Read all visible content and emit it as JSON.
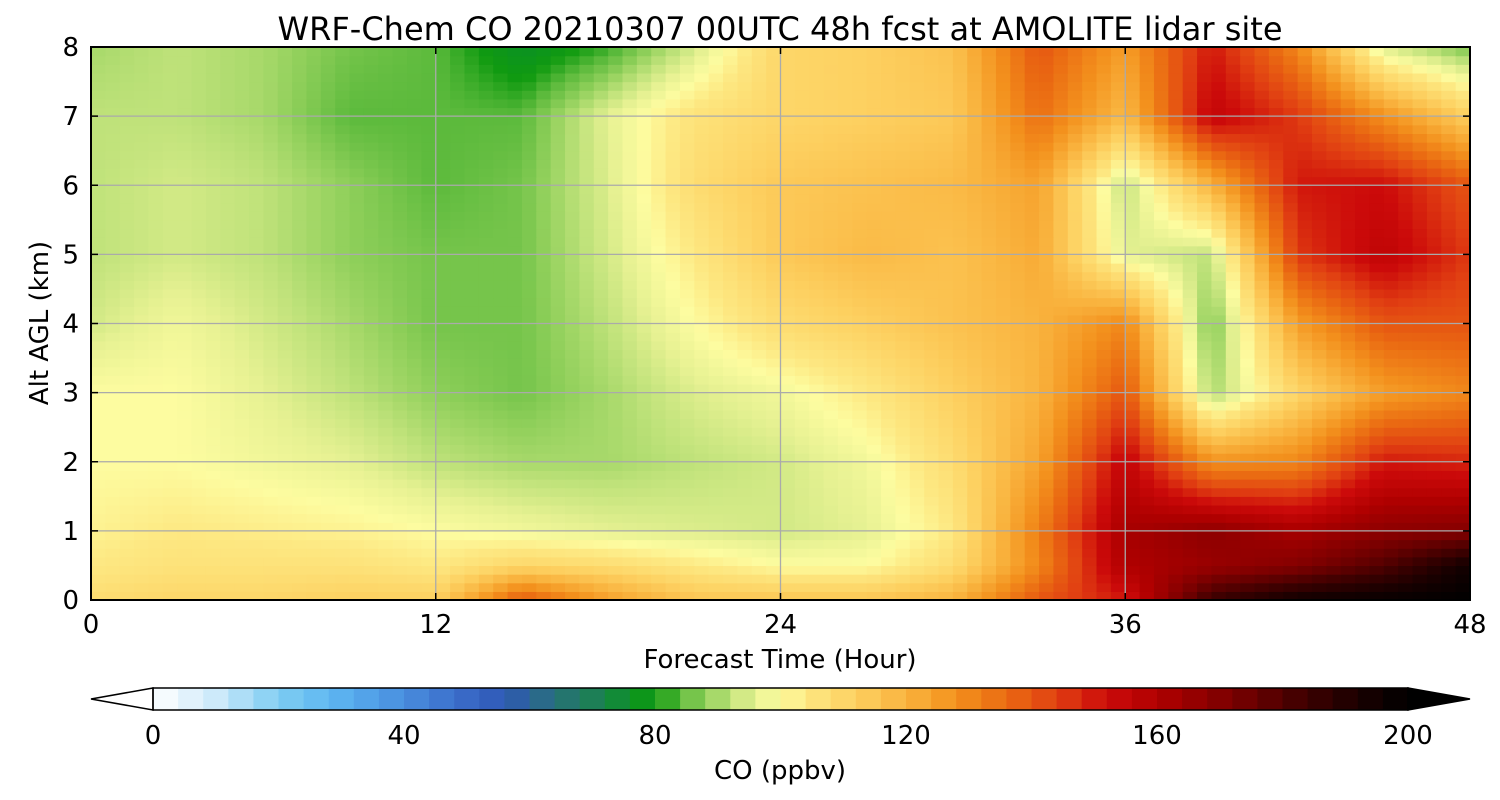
{
  "chart_data": {
    "type": "heatmap",
    "title": "WRF-Chem CO  20210307 00UTC 48h fcst at AMOLITE lidar site",
    "xlabel": "Forecast Time (Hour)",
    "ylabel": "Alt AGL (km)",
    "xlim": [
      0,
      48
    ],
    "ylim": [
      0,
      8
    ],
    "x_ticks": [
      "0",
      "12",
      "24",
      "36",
      "48"
    ],
    "y_ticks": [
      "0",
      "1",
      "2",
      "3",
      "4",
      "5",
      "6",
      "7",
      "8"
    ],
    "grid": true,
    "x": [
      0,
      3,
      6,
      9,
      12,
      15,
      18,
      21,
      24,
      27,
      30,
      33,
      36,
      39,
      42,
      45,
      48
    ],
    "y": [
      0,
      0.5,
      1,
      2,
      3,
      4,
      5,
      6,
      7,
      8
    ],
    "z": [
      [
        108,
        110,
        110,
        112,
        112,
        140,
        125,
        115,
        115,
        115,
        120,
        140,
        150,
        185,
        195,
        198,
        200
      ],
      [
        104,
        106,
        106,
        106,
        104,
        110,
        108,
        104,
        100,
        100,
        108,
        130,
        160,
        165,
        170,
        180,
        195
      ],
      [
        102,
        104,
        103,
        102,
        100,
        98,
        96,
        95,
        94,
        96,
        104,
        132,
        162,
        168,
        162,
        168,
        170
      ],
      [
        100,
        100,
        98,
        96,
        92,
        90,
        90,
        92,
        94,
        98,
        108,
        124,
        155,
        128,
        130,
        150,
        148
      ],
      [
        100,
        100,
        96,
        92,
        88,
        86,
        90,
        95,
        98,
        104,
        112,
        120,
        140,
        90,
        110,
        125,
        130
      ],
      [
        94,
        98,
        94,
        90,
        86,
        86,
        92,
        100,
        108,
        112,
        116,
        120,
        130,
        86,
        125,
        140,
        140
      ],
      [
        92,
        94,
        92,
        88,
        86,
        86,
        94,
        104,
        114,
        118,
        116,
        122,
        96,
        92,
        145,
        156,
        145
      ],
      [
        92,
        94,
        92,
        88,
        84,
        86,
        95,
        108,
        114,
        116,
        118,
        124,
        92,
        120,
        150,
        152,
        140
      ],
      [
        92,
        92,
        90,
        84,
        84,
        84,
        96,
        106,
        110,
        112,
        114,
        135,
        118,
        155,
        145,
        128,
        112
      ],
      [
        90,
        92,
        90,
        86,
        84,
        76,
        82,
        94,
        110,
        112,
        116,
        140,
        125,
        150,
        130,
        95,
        86
      ]
    ],
    "colorbar": {
      "label": "CO  (ppbv)",
      "min": 0,
      "max": 200,
      "ticks": [
        "0",
        "40",
        "80",
        "120",
        "160",
        "200"
      ],
      "extend": "both",
      "colors": [
        [
          0,
          "#ffffff"
        ],
        [
          10,
          "#cdeafa"
        ],
        [
          20,
          "#7fcdf2"
        ],
        [
          28,
          "#5fb8f2"
        ],
        [
          36,
          "#4f9ce6"
        ],
        [
          48,
          "#3c6fcc"
        ],
        [
          56,
          "#2f58b5"
        ],
        [
          64,
          "#28707a"
        ],
        [
          72,
          "#19844a"
        ],
        [
          76,
          "#0a9124"
        ],
        [
          80,
          "#109a10"
        ],
        [
          84,
          "#5cba3c"
        ],
        [
          88,
          "#8fcf5a"
        ],
        [
          92,
          "#bfe27a"
        ],
        [
          96,
          "#e6f192"
        ],
        [
          100,
          "#fdfca0"
        ],
        [
          104,
          "#fde882"
        ],
        [
          112,
          "#fdd060"
        ],
        [
          120,
          "#f9b33e"
        ],
        [
          128,
          "#f3911d"
        ],
        [
          136,
          "#ea6a12"
        ],
        [
          144,
          "#e14012"
        ],
        [
          152,
          "#cc0a0a"
        ],
        [
          160,
          "#b00000"
        ],
        [
          172,
          "#7a0000"
        ],
        [
          184,
          "#3c0000"
        ],
        [
          192,
          "#1a0000"
        ],
        [
          200,
          "#000000"
        ]
      ]
    }
  }
}
